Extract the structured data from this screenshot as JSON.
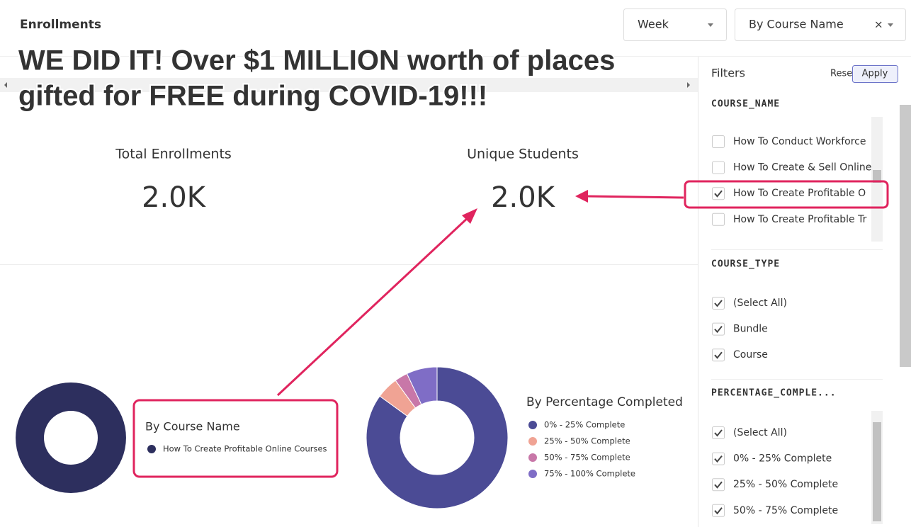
{
  "header": {
    "title": "Enrollments",
    "period": "Week",
    "group_by": "By Course Name",
    "clear": "×"
  },
  "annotation": {
    "lines": [
      "WE DID IT!  Over $1 MILLION worth of places",
      "gifted for FREE during COVID-19!!!"
    ]
  },
  "kpis": [
    {
      "label": "Total Enrollments",
      "value": "2.0K"
    },
    {
      "label": "Unique Students",
      "value": "2.0K"
    }
  ],
  "filters": {
    "title": "Filters",
    "reset": "Reset",
    "apply": "Apply",
    "sections": [
      {
        "name": "COURSE_NAME",
        "items": [
          {
            "label": "How To Conduct Workforce",
            "checked": false
          },
          {
            "label": "How To Create & Sell Online",
            "checked": false
          },
          {
            "label": "How To Create Profitable O",
            "checked": true
          },
          {
            "label": "How To Create Profitable Tr",
            "checked": false
          }
        ]
      },
      {
        "name": "COURSE_TYPE",
        "items": [
          {
            "label": "(Select All)",
            "checked": true
          },
          {
            "label": "Bundle",
            "checked": true
          },
          {
            "label": "Course",
            "checked": true
          }
        ]
      },
      {
        "name": "PERCENTAGE_COMPLE...",
        "items": [
          {
            "label": "(Select All)",
            "checked": true
          },
          {
            "label": "0% - 25% Complete",
            "checked": true
          },
          {
            "label": "25% - 50% Complete",
            "checked": true
          },
          {
            "label": "50% - 75% Complete",
            "checked": true
          }
        ]
      }
    ]
  },
  "chart_data": [
    {
      "type": "pie",
      "title": "By Course Name",
      "categories": [
        "How To Create Profitable Online Courses"
      ],
      "values": [
        100
      ],
      "colors": [
        "#2d2f5e"
      ]
    },
    {
      "type": "pie",
      "title": "By Percentage Completed",
      "categories": [
        "0% - 25% Complete",
        "25% - 50% Complete",
        "50% - 75% Complete",
        "75% - 100% Complete"
      ],
      "values": [
        85,
        5,
        3,
        7
      ],
      "colors": [
        "#4b4b95",
        "#f0a394",
        "#c877a8",
        "#7f6dc6"
      ]
    }
  ]
}
